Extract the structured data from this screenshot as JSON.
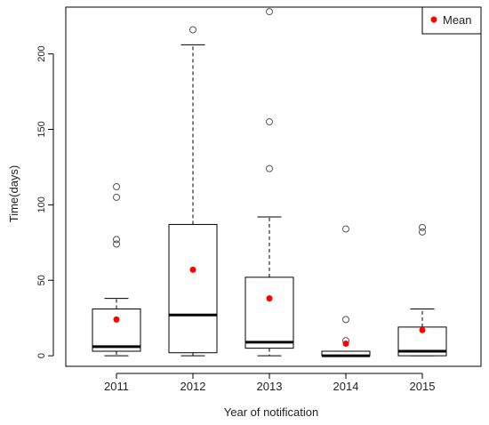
{
  "chart_data": {
    "type": "boxplot",
    "title": "",
    "xlabel": "Year of notification",
    "ylabel": "Time(days)",
    "ylim": [
      -7,
      231
    ],
    "yticks": [
      0,
      50,
      100,
      150,
      200
    ],
    "grid": false,
    "legend": {
      "placement": "top-right",
      "entries": [
        {
          "label": "Mean",
          "color": "#ff0000"
        }
      ]
    },
    "categories": [
      "2011",
      "2012",
      "2013",
      "2014",
      "2015"
    ],
    "boxes": [
      {
        "min": 0,
        "q1": 3,
        "median": 6,
        "q3": 31,
        "max": 38,
        "mean": 24,
        "outliers": [
          74,
          77,
          105,
          112
        ]
      },
      {
        "min": 0,
        "q1": 2,
        "median": 27,
        "q3": 87,
        "max": 206,
        "mean": 57,
        "outliers": [
          216
        ]
      },
      {
        "min": 0,
        "q1": 5,
        "median": 9,
        "q3": 52,
        "max": 92,
        "mean": 38,
        "outliers": [
          124,
          155,
          228
        ]
      },
      {
        "min": 0,
        "q1": 0,
        "median": 0,
        "q3": 3,
        "max": 3,
        "mean": 8,
        "outliers": [
          10,
          24,
          84
        ]
      },
      {
        "min": 0,
        "q1": 0,
        "median": 3,
        "q3": 19,
        "max": 31,
        "mean": 17,
        "outliers": [
          82,
          85
        ]
      }
    ],
    "colors": {
      "box": "#000000",
      "mean": "#ff0000",
      "outlier": "#555555"
    }
  }
}
